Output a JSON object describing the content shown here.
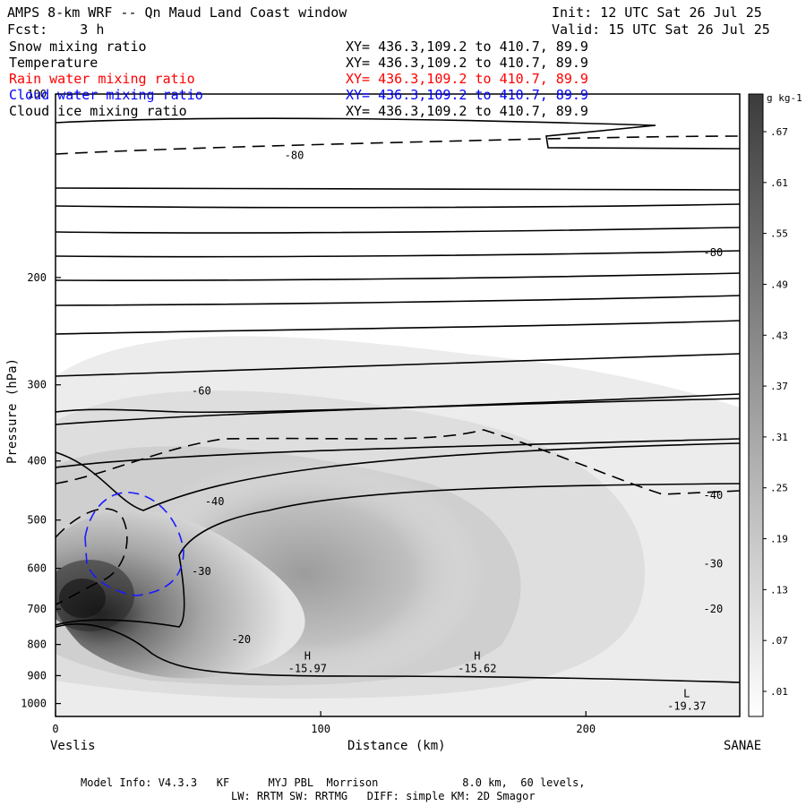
{
  "header": {
    "title": "AMPS 8-km WRF -- Qn Maud Land Coast window",
    "fcst": "Fcst:    3 h",
    "init": "Init: 12 UTC Sat 26 Jul 25",
    "valid": "Valid: 15 UTC Sat 26 Jul 25"
  },
  "fields": [
    {
      "name": "Snow mixing ratio",
      "xy": "XY= 436.3,109.2 to 410.7, 89.9",
      "color": "#000000"
    },
    {
      "name": "Temperature",
      "xy": "XY= 436.3,109.2 to 410.7, 89.9",
      "color": "#000000"
    },
    {
      "name": "Rain water mixing ratio",
      "xy": "XY= 436.3,109.2 to 410.7, 89.9",
      "color": "#ff0000"
    },
    {
      "name": "Cloud water mixing ratio",
      "xy": "XY= 436.3,109.2 to 410.7, 89.9",
      "color": "#0000ff"
    },
    {
      "name": "Cloud ice mixing ratio",
      "xy": "XY= 436.3,109.2 to 410.7, 89.9",
      "color": "#000000"
    }
  ],
  "footer": {
    "line1": "Model Info: V4.3.3   KF      MYJ PBL  Morrison             8.0 km,  60 levels,",
    "line2": "LW: RRTM SW: RRTMG   DIFF: simple KM: 2D Smagor"
  },
  "chart_data": {
    "type": "heatmap",
    "title": "",
    "xlabel": "Distance (km)",
    "ylabel": "Pressure (hPa)",
    "xlim": [
      0,
      258
    ],
    "ylim": [
      1050,
      100
    ],
    "y_scale": "log-pressure",
    "x_ticks": [
      0,
      100,
      200
    ],
    "y_ticks": [
      100,
      200,
      300,
      400,
      500,
      600,
      700,
      800,
      900,
      1000
    ],
    "x_endpoints": {
      "left": "Veslis",
      "right": "SANAE"
    },
    "colorbar": {
      "unit": "g kg-1",
      "levels": [
        ".01",
        ".07",
        ".13",
        ".19",
        ".25",
        ".31",
        ".37",
        ".43",
        ".49",
        ".55",
        ".61",
        ".67"
      ]
    },
    "temperature_contour_labels": [
      {
        "text": "-80",
        "x": 90,
        "p": 126
      },
      {
        "text": "-80",
        "x": 248,
        "p": 182
      },
      {
        "text": "-60",
        "x": 55,
        "p": 307
      },
      {
        "text": "-40",
        "x": 60,
        "p": 466
      },
      {
        "text": "-40",
        "x": 248,
        "p": 455
      },
      {
        "text": "-30",
        "x": 55,
        "p": 607
      },
      {
        "text": "-30",
        "x": 248,
        "p": 590
      },
      {
        "text": "-20",
        "x": 70,
        "p": 785
      },
      {
        "text": "-20",
        "x": 248,
        "p": 700
      }
    ],
    "extrema": [
      {
        "type": "H",
        "value": "-15.97",
        "x": 95,
        "p": 858
      },
      {
        "type": "H",
        "value": "-15.62",
        "x": 159,
        "p": 858
      },
      {
        "type": "L",
        "value": "-19.37",
        "x": 238,
        "p": 990
      }
    ]
  }
}
